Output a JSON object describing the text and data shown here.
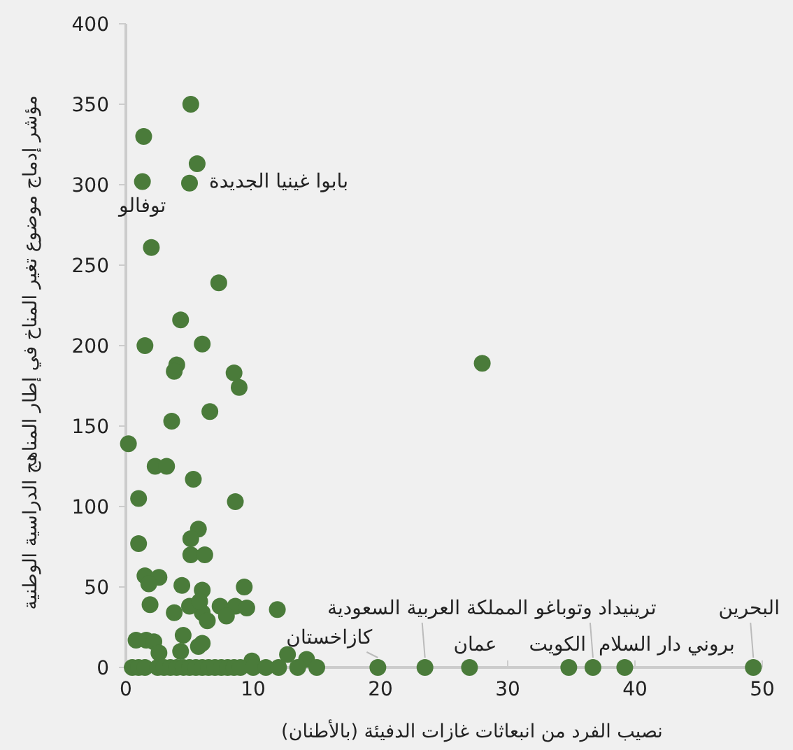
{
  "chart_data": {
    "type": "scatter",
    "xlabel": "نصيب الفرد من انبعاثات غازات الدفيئة (بالأطنان)",
    "ylabel": "مؤشر إدماج موضوع تغير المناخ في إطار المناهج الدراسية الوطنية",
    "xlim": [
      0,
      50
    ],
    "ylim": [
      0,
      400
    ],
    "xticks": [
      0,
      10,
      20,
      30,
      40,
      50
    ],
    "yticks": [
      0,
      50,
      100,
      150,
      200,
      250,
      300,
      350,
      400
    ],
    "grid": false,
    "marker": "circle",
    "series": [
      {
        "color": "#4a7b3a",
        "x": [
          5.1,
          1.4,
          5.6,
          1.3,
          5.0,
          2.0,
          7.3,
          4.3,
          1.5,
          6.0,
          4.0,
          3.8,
          8.5,
          8.9,
          6.6,
          3.6,
          0.2,
          2.3,
          3.2,
          5.3,
          1.0,
          8.6,
          1.0,
          5.7,
          5.1,
          5.1,
          6.2,
          1.5,
          2.6,
          1.8,
          4.4,
          6.0,
          9.3,
          1.9,
          3.8,
          6.0,
          7.4,
          5.0,
          5.8,
          8.6,
          7.9,
          6.4,
          9.5,
          11.9,
          0.8,
          1.6,
          2.2,
          4.3,
          2.6,
          5.7,
          6.0,
          12.7,
          14.2,
          4.5,
          9.9,
          28.0,
          0.5,
          1.0,
          1.5,
          2.5,
          3.0,
          3.5,
          4.0,
          4.5,
          5.0,
          5.5,
          6.0,
          6.5,
          7.0,
          7.5,
          8.0,
          8.5,
          9.0,
          10.0,
          11.0,
          12.0,
          13.5,
          15.0,
          19.8,
          23.5,
          27.0,
          34.8,
          36.7,
          39.2,
          49.3
        ],
        "values": [
          350,
          330,
          313,
          302,
          301,
          261,
          239,
          216,
          200,
          201,
          188,
          184,
          183,
          174,
          159,
          153,
          139,
          125,
          125,
          117,
          105,
          103,
          77,
          86,
          80,
          70,
          70,
          57,
          56,
          52,
          51,
          48,
          50,
          39,
          34,
          34,
          38,
          38,
          41,
          38,
          32,
          29,
          37,
          36,
          17,
          17,
          16,
          10,
          9,
          13,
          15,
          8,
          5,
          20,
          4,
          189,
          0,
          0,
          0,
          0,
          0,
          0,
          0,
          0,
          0,
          0,
          0,
          0,
          0,
          0,
          0,
          0,
          0,
          0,
          0,
          0,
          0,
          0,
          0,
          0,
          0,
          0,
          0,
          0,
          0
        ]
      }
    ],
    "annotations": [
      {
        "text": "توفالو",
        "x": 1.3,
        "y": 302
      },
      {
        "text": "بابوا غينيا الجديدة",
        "x": 5.0,
        "y": 301
      },
      {
        "text": "كازاخستان",
        "x": 19.8,
        "y": 0
      },
      {
        "text": "المملكة العربية السعودية",
        "x": 23.5,
        "y": 0
      },
      {
        "text": "عمان",
        "x": 27.0,
        "y": 0
      },
      {
        "text": "الكويت",
        "x": 34.8,
        "y": 0
      },
      {
        "text": "ترينيداد وتوباغو",
        "x": 36.7,
        "y": 0
      },
      {
        "text": "بروني دار السلام",
        "x": 39.2,
        "y": 0
      },
      {
        "text": "البحرين",
        "x": 49.3,
        "y": 0
      }
    ]
  }
}
